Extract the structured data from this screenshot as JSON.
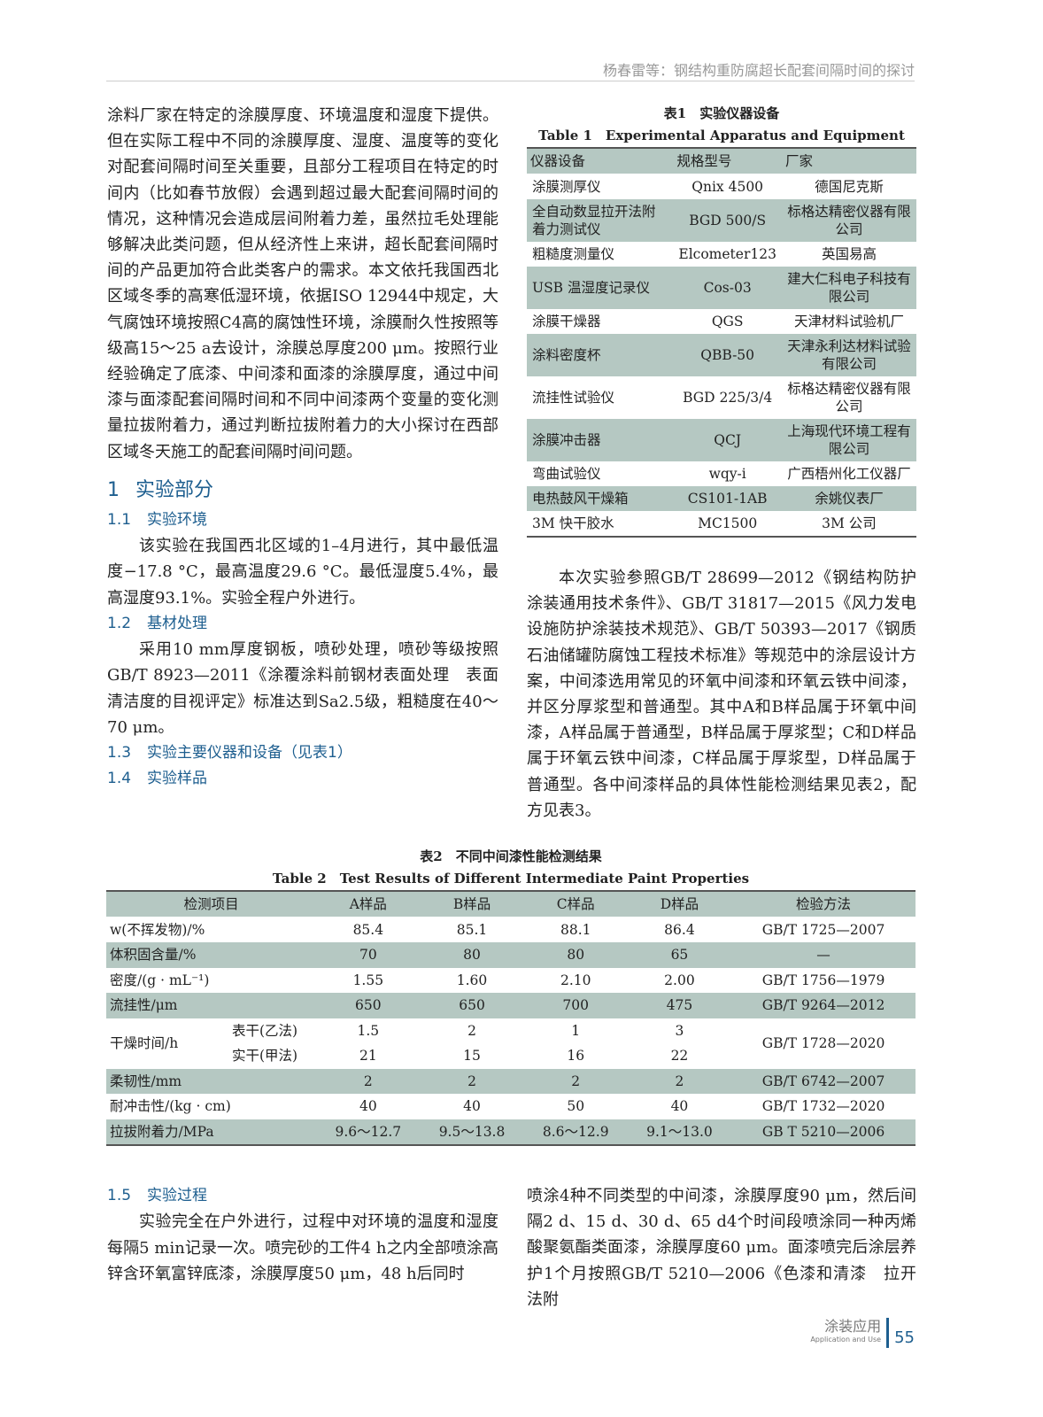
{
  "header": {
    "running_title": "杨春雷等：钢结构重防腐超长配套间隔时间的探讨"
  },
  "left": {
    "p1": "涂料厂家在特定的涂膜厚度、环境温度和湿度下提供。但在实际工程中不同的涂膜厚度、湿度、温度等的变化对配套间隔时间至关重要，且部分工程项目在特定的时间内（比如春节放假）会遇到超过最大配套间隔时间的情况，这种情况会造成层间附着力差，虽然拉毛处理能够解决此类问题，但从经济性上来讲，超长配套间隔时间的产品更加符合此类客户的需求。本文依托我国西北区域冬季的高寒低湿环境，依据ISO 12944中规定，大气腐蚀环境按照C4高的腐蚀性环境，涂膜耐久性按照等级高15～25 a去设计，涂膜总厚度200 μm。按照行业经验确定了底漆、中间漆和面漆的涂膜厚度，通过中间漆与面漆配套间隔时间和不同中间漆两个变量的变化测量拉拔附着力，通过判断拉拔附着力的大小探讨在西部区域冬天施工的配套间隔时间问题。",
    "s1_num": "1",
    "s1_title": "实验部分",
    "s11_num": "1.1",
    "s11_title": "实验环境",
    "p11": "该实验在我国西北区域的1–4月进行，其中最低温度−17.8 °C，最高温度29.6 °C。最低湿度5.4%，最高湿度93.1%。实验全程户外进行。",
    "s12_num": "1.2",
    "s12_title": "基材处理",
    "p12": "采用10 mm厚度钢板，喷砂处理，喷砂等级按照GB/T 8923—2011《涂覆涂料前钢材表面处理　表面清洁度的目视评定》标准达到Sa2.5级，粗糙度在40～70 μm。",
    "s13_num": "1.3",
    "s13_title": "实验主要仪器和设备（见表1）",
    "s14_num": "1.4",
    "s14_title": "实验样品",
    "s15_num": "1.5",
    "s15_title": "实验过程",
    "p15": "实验完全在户外进行，过程中对环境的温度和湿度每隔5 min记录一次。喷完砂的工件4 h之内全部喷涂高锌含环氧富锌底漆，涂膜厚度50 μm，48 h后同时"
  },
  "right": {
    "p1": "本次实验参照GB/T 28699—2012《钢结构防护涂装通用技术条件》、GB/T 31817—2015《风力发电设施防护涂装技术规范》、GB/T 50393—2017《钢质石油储罐防腐蚀工程技术标准》等规范中的涂层设计方案，中间漆选用常见的环氧中间漆和环氧云铁中间漆，并区分厚浆型和普通型。其中A和B样品属于环氧中间漆，A样品属于普通型，B样品属于厚浆型；C和D样品属于环氧云铁中间漆，C样品属于厚浆型，D样品属于普通型。各中间漆样品的具体性能检测结果见表2，配方见表3。",
    "p2": "喷涂4种不同类型的中间漆，涂膜厚度90 μm，然后间隔2 d、15 d、30 d、65 d4个时间段喷涂同一种丙烯酸聚氨酯类面漆，涂膜厚度60 μm。面漆喷完后涂层养护1个月按照GB/T 5210—2006《色漆和清漆　拉开法附"
  },
  "table1": {
    "caption_cn": "表1　实验仪器设备",
    "caption_en": "Table 1　Experimental Apparatus and Equipment",
    "headers": [
      "仪器设备",
      "规格型号",
      "厂家"
    ],
    "rows": [
      [
        "涂膜测厚仪",
        "Qnix 4500",
        "德国尼克斯"
      ],
      [
        "全自动数显拉开法附着力测试仪",
        "BGD 500/S",
        "标格达精密仪器有限公司"
      ],
      [
        "粗糙度测量仪",
        "Elcometer123",
        "英国易高"
      ],
      [
        "USB 温湿度记录仪",
        "Cos-03",
        "建大仁科电子科技有限公司"
      ],
      [
        "涂膜干燥器",
        "QGS",
        "天津材料试验机厂"
      ],
      [
        "涂料密度杯",
        "QBB-50",
        "天津永利达材料试验有限公司"
      ],
      [
        "流挂性试验仪",
        "BGD 225/3/4",
        "标格达精密仪器有限公司"
      ],
      [
        "涂膜冲击器",
        "QCJ",
        "上海现代环境工程有限公司"
      ],
      [
        "弯曲试验仪",
        "wqy-i",
        "广西梧州化工仪器厂"
      ],
      [
        "电热鼓风干燥箱",
        "CS101-1AB",
        "余姚仪表厂"
      ],
      [
        "3M 快干胶水",
        "MC1500",
        "3M 公司"
      ]
    ]
  },
  "table2": {
    "caption_cn": "表2　不同中间漆性能检测结果",
    "caption_en": "Table 2　Test Results of Different Intermediate Paint Properties",
    "headers": [
      "检测项目",
      "A样品",
      "B样品",
      "C样品",
      "D样品",
      "检验方法"
    ],
    "rows": [
      {
        "item": "w(不挥发物)/%",
        "v": [
          "85.4",
          "85.1",
          "88.1",
          "86.4"
        ],
        "method": "GB/T 1725—2007"
      },
      {
        "item": "体积固含量/%",
        "v": [
          "70",
          "80",
          "80",
          "65"
        ],
        "method": "—"
      },
      {
        "item": "密度/(g · mL⁻¹)",
        "v": [
          "1.55",
          "1.60",
          "2.10",
          "2.00"
        ],
        "method": "GB/T 1756—1979"
      },
      {
        "item": "流挂性/μm",
        "v": [
          "650",
          "650",
          "700",
          "475"
        ],
        "method": "GB/T 9264—2012"
      }
    ],
    "dry": {
      "item": "干燥时间/h",
      "sub1": "表干(乙法)",
      "v1": [
        "1.5",
        "2",
        "1",
        "3"
      ],
      "sub2": "实干(甲法)",
      "v2": [
        "21",
        "15",
        "16",
        "22"
      ],
      "method": "GB/T 1728—2020"
    },
    "rows2": [
      {
        "item": "柔韧性/mm",
        "v": [
          "2",
          "2",
          "2",
          "2"
        ],
        "method": "GB/T 6742—2007"
      },
      {
        "item": "耐冲击性/(kg · cm)",
        "v": [
          "40",
          "40",
          "50",
          "40"
        ],
        "method": "GB/T 1732—2020"
      },
      {
        "item": "拉拔附着力/MPa",
        "v": [
          "9.6～12.7",
          "9.5～13.8",
          "8.6～12.9",
          "9.1～13.0"
        ],
        "method": "GB T 5210—2006"
      }
    ]
  },
  "footer": {
    "journal": "涂装应用",
    "journal_en": "Application and Use",
    "page": "55"
  }
}
